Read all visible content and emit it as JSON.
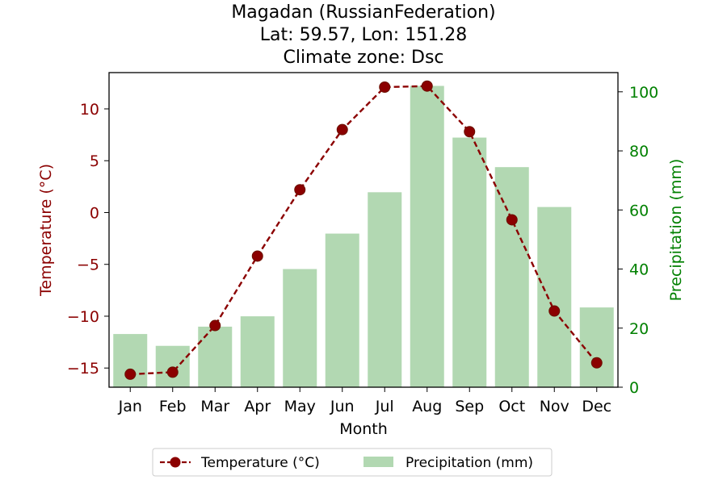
{
  "chart_data": {
    "type": "bar+line",
    "title_lines": [
      "Magadan (RussianFederation)",
      "Lat: 59.57, Lon: 151.28",
      "Climate zone: Dsc"
    ],
    "xlabel": "Month",
    "ylabel_left": "Temperature (°C)",
    "ylabel_right": "Precipitation (mm)",
    "categories": [
      "Jan",
      "Feb",
      "Mar",
      "Apr",
      "May",
      "Jun",
      "Jul",
      "Aug",
      "Sep",
      "Oct",
      "Nov",
      "Dec"
    ],
    "temperature": {
      "name": "Temperature (°C)",
      "color": "#8b0000",
      "values": [
        -15.6,
        -15.4,
        -10.9,
        -4.2,
        2.2,
        8.0,
        12.1,
        12.2,
        7.8,
        -0.7,
        -9.5,
        -14.5
      ]
    },
    "precipitation": {
      "name": "Precipitation (mm)",
      "color": "#b2d8b2",
      "values": [
        18,
        14,
        20.5,
        24,
        40,
        52,
        66,
        102,
        84.5,
        74.5,
        61,
        27
      ]
    },
    "ylim_left": [
      -16.85,
      13.5
    ],
    "ylim_right": [
      0,
      106.5
    ],
    "yticks_left": [
      -15,
      -10,
      -5,
      0,
      5,
      10
    ],
    "yticks_right": [
      0,
      20,
      40,
      60,
      80,
      100
    ],
    "left_axis_color": "#8b0000",
    "right_axis_color": "#008000",
    "legend_position": "bottom-center"
  }
}
